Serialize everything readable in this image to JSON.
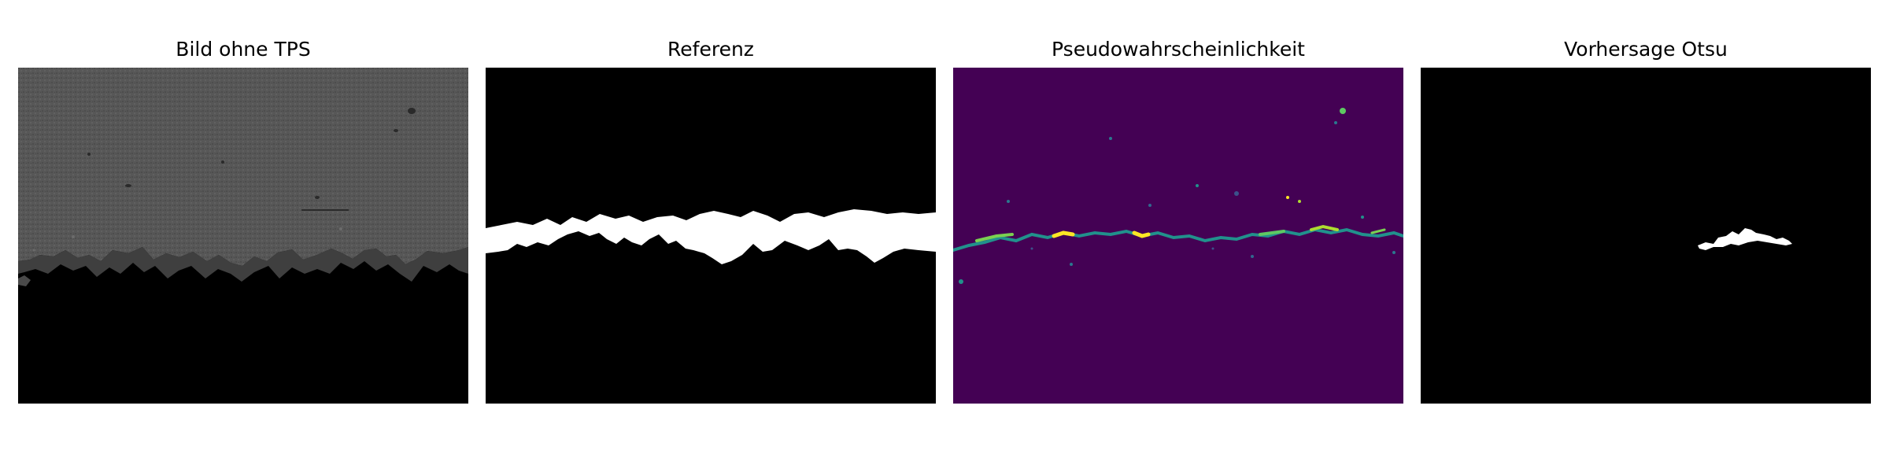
{
  "figure": {
    "panels": [
      {
        "title": "Bild ohne TPS"
      },
      {
        "title": "Referenz"
      },
      {
        "title": "Pseudowahrscheinlichkeit"
      },
      {
        "title": "Vorhersage Otsu"
      }
    ]
  },
  "colors": {
    "background": "#ffffff",
    "mask_background": "#000000",
    "mask_foreground": "#ffffff",
    "sem_texture": "#555555",
    "viridis_low": "#440154",
    "viridis_mid": "#21918c",
    "viridis_high": "#fde725"
  }
}
